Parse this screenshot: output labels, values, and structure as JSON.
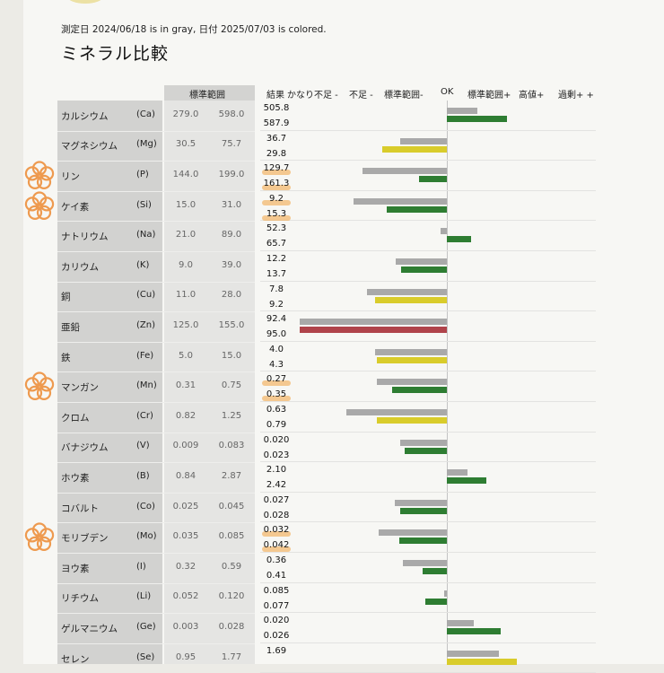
{
  "document": {
    "subtitle": "測定日 2024/06/18 is in gray, 日付 2025/07/03 is colored.",
    "title": "ミネラル比較"
  },
  "header": {
    "standard_range": "標準範囲",
    "result": "結果",
    "levels": [
      "かなり不足 -",
      "不足 -",
      "標準範囲-",
      "OK",
      "標準範囲+",
      "高値+",
      "過剰+ +"
    ]
  },
  "legend": {
    "old_date": "2024/06/18",
    "old_color_name": "gray",
    "new_date": "2025/07/03"
  },
  "colors": {
    "gray": "#a9a9a9",
    "green": "#2e7d32",
    "yellow": "#d9cc2b",
    "red": "#b0434a",
    "highlighter": "#f1a94d"
  },
  "minerals": [
    {
      "name": "カルシウム",
      "symbol": "(Ca)",
      "low": "279.0",
      "high": "598.0",
      "old": "505.8",
      "new": "587.9",
      "old_bar": [
        0,
        34
      ],
      "new_bar": [
        0,
        67
      ],
      "new_color": "green",
      "highlight": false
    },
    {
      "name": "マグネシウム",
      "symbol": "(Mg)",
      "low": "30.5",
      "high": "75.7",
      "old": "36.7",
      "new": "29.8",
      "old_bar": [
        -52,
        0
      ],
      "new_bar": [
        -72,
        0
      ],
      "new_color": "yellow",
      "highlight": false
    },
    {
      "name": "リン",
      "symbol": "(P)",
      "low": "144.0",
      "high": "199.0",
      "old": "129.7",
      "new": "161.3",
      "old_bar": [
        -94,
        0
      ],
      "new_bar": [
        -31,
        0
      ],
      "new_color": "green",
      "highlight": true
    },
    {
      "name": "ケイ素",
      "symbol": "(Si)",
      "low": "15.0",
      "high": "31.0",
      "old": "9.2",
      "new": "15.3",
      "old_bar": [
        -104,
        0
      ],
      "new_bar": [
        -67,
        0
      ],
      "new_color": "green",
      "highlight": true
    },
    {
      "name": "ナトリウム",
      "symbol": "(Na)",
      "low": "21.0",
      "high": "89.0",
      "old": "52.3",
      "new": "65.7",
      "old_bar": [
        -7,
        0
      ],
      "new_bar": [
        0,
        27
      ],
      "new_color": "green",
      "highlight": false
    },
    {
      "name": "カリウム",
      "symbol": "(K)",
      "low": "9.0",
      "high": "39.0",
      "old": "12.2",
      "new": "13.7",
      "old_bar": [
        -57,
        0
      ],
      "new_bar": [
        -51,
        0
      ],
      "new_color": "green",
      "highlight": false
    },
    {
      "name": "銅",
      "symbol": "(Cu)",
      "low": "11.0",
      "high": "28.0",
      "old": "7.8",
      "new": "9.2",
      "old_bar": [
        -89,
        0
      ],
      "new_bar": [
        -80,
        0
      ],
      "new_color": "yellow",
      "highlight": false
    },
    {
      "name": "亜鉛",
      "symbol": "(Zn)",
      "low": "125.0",
      "high": "155.0",
      "old": "92.4",
      "new": "95.0",
      "old_bar": [
        -164,
        0
      ],
      "new_bar": [
        -164,
        0
      ],
      "new_color": "red",
      "highlight": false
    },
    {
      "name": "鉄",
      "symbol": "(Fe)",
      "low": "5.0",
      "high": "15.0",
      "old": "4.0",
      "new": "4.3",
      "old_bar": [
        -80,
        0
      ],
      "new_bar": [
        -78,
        0
      ],
      "new_color": "yellow",
      "highlight": false
    },
    {
      "name": "マンガン",
      "symbol": "(Mn)",
      "low": "0.31",
      "high": "0.75",
      "old": "0.27",
      "new": "0.35",
      "old_bar": [
        -78,
        0
      ],
      "new_bar": [
        -61,
        0
      ],
      "new_color": "green",
      "highlight": true
    },
    {
      "name": "クロム",
      "symbol": "(Cr)",
      "low": "0.82",
      "high": "1.25",
      "old": "0.63",
      "new": "0.79",
      "old_bar": [
        -112,
        0
      ],
      "new_bar": [
        -78,
        0
      ],
      "new_color": "yellow",
      "highlight": false
    },
    {
      "name": "バナジウム",
      "symbol": "(V)",
      "low": "0.009",
      "high": "0.083",
      "old": "0.020",
      "new": "0.023",
      "old_bar": [
        -52,
        0
      ],
      "new_bar": [
        -47,
        0
      ],
      "new_color": "green",
      "highlight": false
    },
    {
      "name": "ホウ素",
      "symbol": "(B)",
      "low": "0.84",
      "high": "2.87",
      "old": "2.10",
      "new": "2.42",
      "old_bar": [
        0,
        23
      ],
      "new_bar": [
        0,
        44
      ],
      "new_color": "green",
      "highlight": false
    },
    {
      "name": "コバルト",
      "symbol": "(Co)",
      "low": "0.025",
      "high": "0.045",
      "old": "0.027",
      "new": "0.028",
      "old_bar": [
        -58,
        0
      ],
      "new_bar": [
        -52,
        0
      ],
      "new_color": "green",
      "highlight": false
    },
    {
      "name": "モリブデン",
      "symbol": "(Mo)",
      "low": "0.035",
      "high": "0.085",
      "old": "0.032",
      "new": "0.042",
      "old_bar": [
        -76,
        0
      ],
      "new_bar": [
        -53,
        0
      ],
      "new_color": "green",
      "highlight": true
    },
    {
      "name": "ヨウ素",
      "symbol": "(I)",
      "low": "0.32",
      "high": "0.59",
      "old": "0.36",
      "new": "0.41",
      "old_bar": [
        -49,
        0
      ],
      "new_bar": [
        -27,
        0
      ],
      "new_color": "green",
      "highlight": false
    },
    {
      "name": "リチウム",
      "symbol": "(Li)",
      "low": "0.052",
      "high": "0.120",
      "old": "0.085",
      "new": "0.077",
      "old_bar": [
        -3,
        0
      ],
      "new_bar": [
        -24,
        0
      ],
      "new_color": "green",
      "highlight": false
    },
    {
      "name": "ゲルマニウム",
      "symbol": "(Ge)",
      "low": "0.003",
      "high": "0.028",
      "old": "0.020",
      "new": "0.026",
      "old_bar": [
        0,
        30
      ],
      "new_bar": [
        0,
        60
      ],
      "new_color": "green",
      "highlight": false
    },
    {
      "name": "セレン",
      "symbol": "(Se)",
      "low": "0.95",
      "high": "1.77",
      "old": "1.69",
      "new": "",
      "old_bar": [
        0,
        58
      ],
      "new_bar": [
        0,
        78
      ],
      "new_color": "yellow",
      "highlight": false
    }
  ]
}
